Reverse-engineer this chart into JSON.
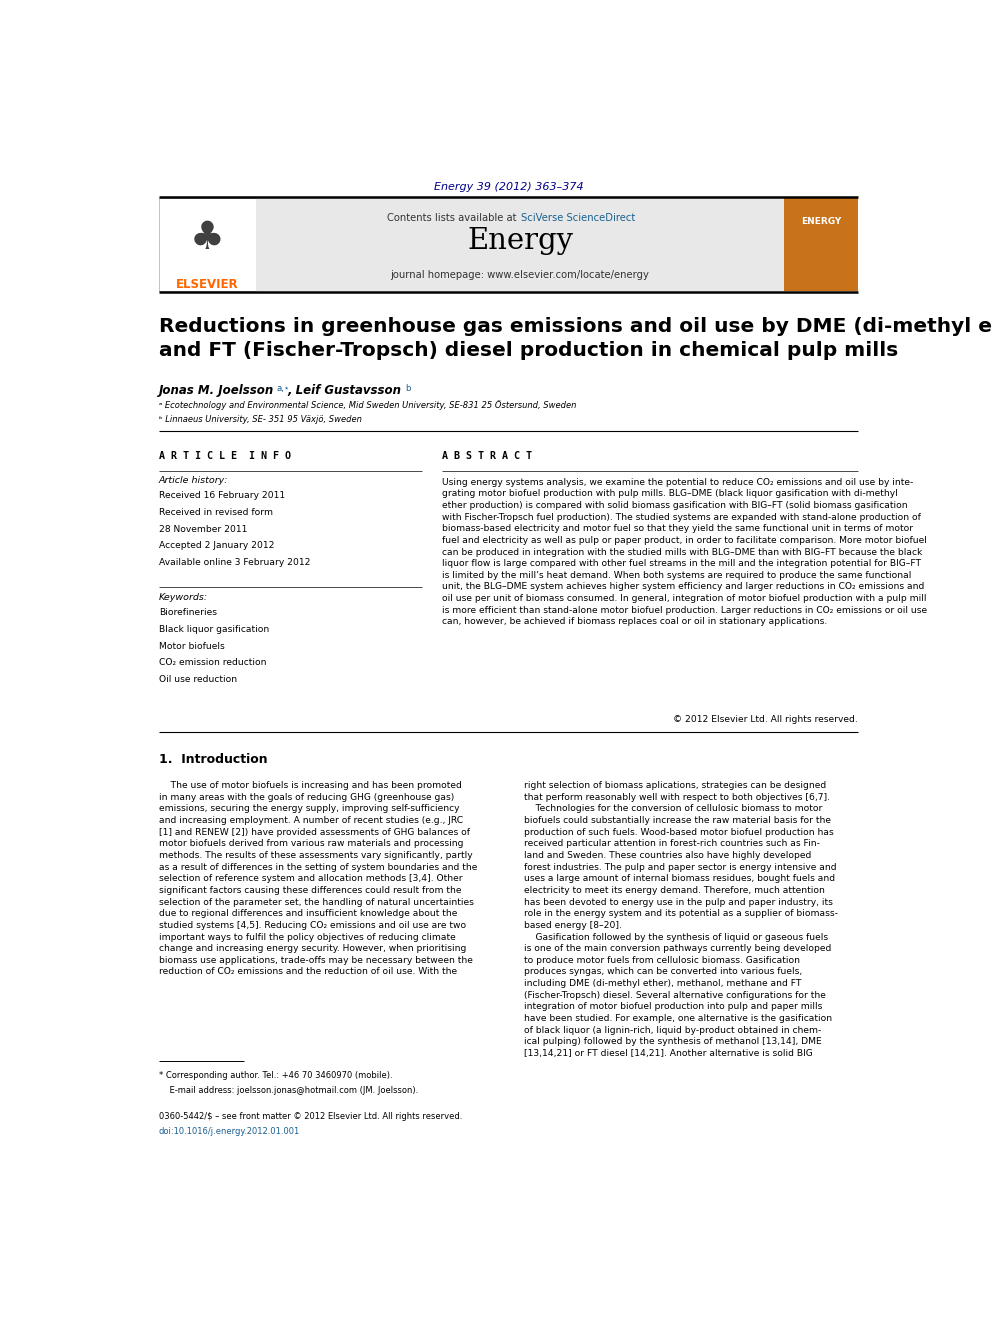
{
  "page_width": 9.92,
  "page_height": 13.23,
  "background_color": "#ffffff",
  "journal_ref": "Energy 39 (2012) 363–374",
  "journal_ref_color": "#00008B",
  "journal_ref_fontsize": 8,
  "header_bg_color": "#e8e8e8",
  "header_sciverse_color": "#1a6090",
  "elsevier_color": "#FF6600",
  "article_title": "Reductions in greenhouse gas emissions and oil use by DME (di-methyl ether)\nand FT (Fischer-Tropsch) diesel production in chemical pulp mills",
  "article_title_fontsize": 15,
  "affil1": "ᵃ Ecotechnology and Environmental Science, Mid Sweden University, SE-831 25 Östersund, Sweden",
  "affil2": "ᵇ Linnaeus University, SE- 351 95 Växjö, Sweden",
  "article_info_title": "A R T I C L E  I N F O",
  "article_history_title": "Article history:",
  "received": "Received 16 February 2011",
  "revised": "Received in revised form",
  "revised2": "28 November 2011",
  "accepted": "Accepted 2 January 2012",
  "available": "Available online 3 February 2012",
  "keywords_title": "Keywords:",
  "kw1": "Biorefineries",
  "kw2": "Black liquor gasification",
  "kw3": "Motor biofuels",
  "kw4": "CO₂ emission reduction",
  "kw5": "Oil use reduction",
  "abstract_title": "A B S T R A C T",
  "abstract_text": "Using energy systems analysis, we examine the potential to reduce CO₂ emissions and oil use by inte-\ngrating motor biofuel production with pulp mills. BLG–DME (black liquor gasification with di-methyl\nether production) is compared with solid biomass gasification with BIG–FT (solid biomass gasification\nwith Fischer-Tropsch fuel production). The studied systems are expanded with stand-alone production of\nbiomass-based electricity and motor fuel so that they yield the same functional unit in terms of motor\nfuel and electricity as well as pulp or paper product, in order to facilitate comparison. More motor biofuel\ncan be produced in integration with the studied mills with BLG–DME than with BIG–FT because the black\nliquor flow is large compared with other fuel streams in the mill and the integration potential for BIG–FT\nis limited by the mill’s heat demand. When both systems are required to produce the same functional\nunit, the BLG–DME system achieves higher system efficiency and larger reductions in CO₂ emissions and\noil use per unit of biomass consumed. In general, integration of motor biofuel production with a pulp mill\nis more efficient than stand-alone motor biofuel production. Larger reductions in CO₂ emissions or oil use\ncan, however, be achieved if biomass replaces coal or oil in stationary applications.",
  "copyright_text": "© 2012 Elsevier Ltd. All rights reserved.",
  "section1_title": "1.  Introduction",
  "intro_col1": "    The use of motor biofuels is increasing and has been promoted\nin many areas with the goals of reducing GHG (greenhouse gas)\nemissions, securing the energy supply, improving self-sufficiency\nand increasing employment. A number of recent studies (e.g., JRC\n[1] and RENEW [2]) have provided assessments of GHG balances of\nmotor biofuels derived from various raw materials and processing\nmethods. The results of these assessments vary significantly, partly\nas a result of differences in the setting of system boundaries and the\nselection of reference system and allocation methods [3,4]. Other\nsignificant factors causing these differences could result from the\nselection of the parameter set, the handling of natural uncertainties\ndue to regional differences and insufficient knowledge about the\nstudied systems [4,5]. Reducing CO₂ emissions and oil use are two\nimportant ways to fulfil the policy objectives of reducing climate\nchange and increasing energy security. However, when prioritising\nbiomass use applications, trade-offs may be necessary between the\nreduction of CO₂ emissions and the reduction of oil use. With the",
  "intro_col2": "right selection of biomass aplications, strategies can be designed\nthat perform reasonably well with respect to both objectives [6,7].\n    Technologies for the conversion of cellulosic biomass to motor\nbiofuels could substantially increase the raw material basis for the\nproduction of such fuels. Wood-based motor biofuel production has\nreceived particular attention in forest-rich countries such as Fin-\nland and Sweden. These countries also have highly developed\nforest industries. The pulp and paper sector is energy intensive and\nuses a large amount of internal biomass residues, bought fuels and\nelectricity to meet its energy demand. Therefore, much attention\nhas been devoted to energy use in the pulp and paper industry, its\nrole in the energy system and its potential as a supplier of biomass-\nbased energy [8–20].\n    Gasification followed by the synthesis of liquid or gaseous fuels\nis one of the main conversion pathways currently being developed\nto produce motor fuels from cellulosic biomass. Gasification\nproduces syngas, which can be converted into various fuels,\nincluding DME (di-methyl ether), methanol, methane and FT\n(Fischer-Tropsch) diesel. Several alternative configurations for the\nintegration of motor biofuel production into pulp and paper mills\nhave been studied. For example, one alternative is the gasification\nof black liquor (a lignin-rich, liquid by-product obtained in chem-\nical pulping) followed by the synthesis of methanol [13,14], DME\n[13,14,21] or FT diesel [14,21]. Another alternative is solid BIG",
  "footnote_star": "* Corresponding author. Tel.: +46 70 3460970 (mobile).",
  "footnote_email": "    E-mail address: joelsson.jonas@hotmail.com (JM. Joelsson).",
  "footnote_issn": "0360-5442/$ – see front matter © 2012 Elsevier Ltd. All rights reserved.",
  "footnote_doi": "doi:10.1016/j.energy.2012.01.001",
  "link_color": "#1a6090",
  "text_color": "#000000",
  "body_fontsize": 7.5,
  "section_title_fontsize": 9
}
